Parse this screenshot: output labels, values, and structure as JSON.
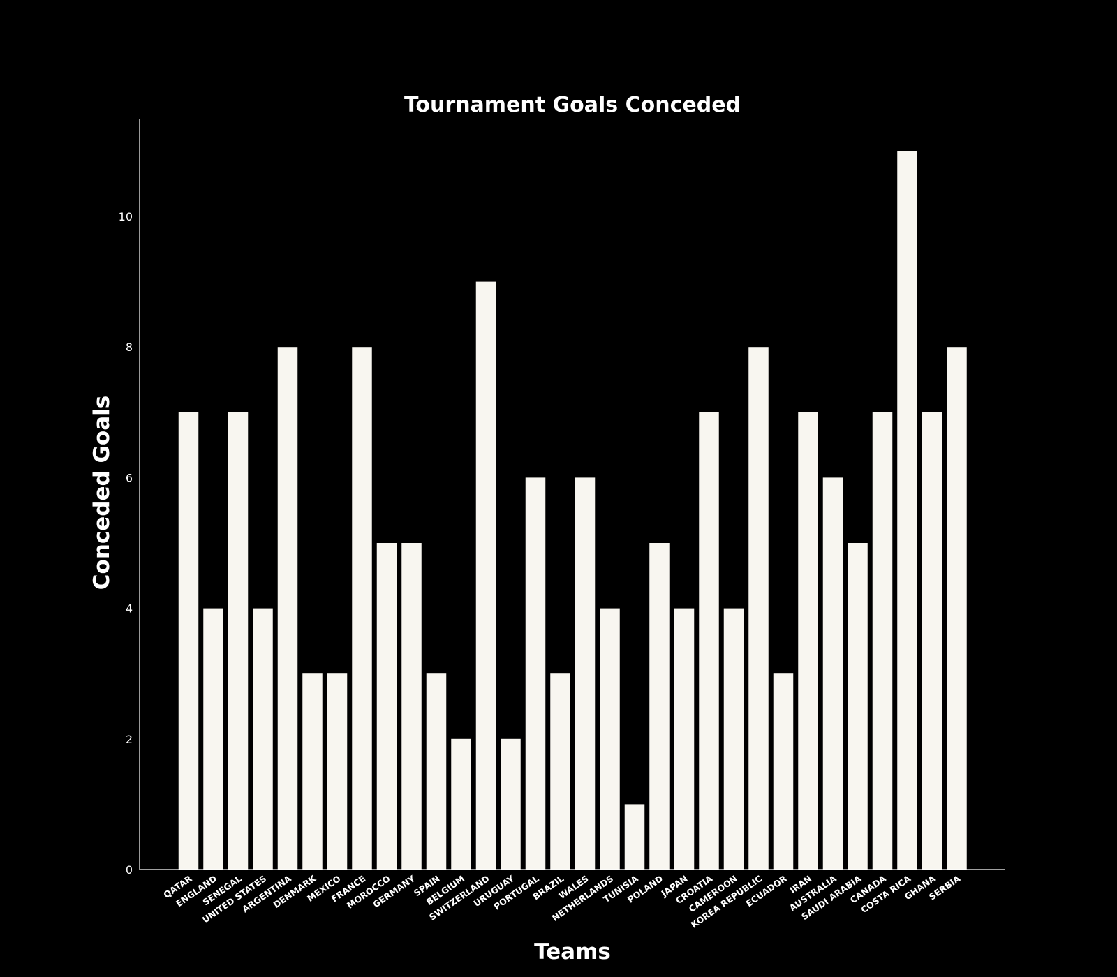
{
  "colors": {
    "background": "#000000",
    "bar": "#f8f6f0",
    "axis": "#ffffff",
    "text": "#ffffff"
  },
  "chart_data": {
    "type": "bar",
    "title": "Tournament Goals Conceded",
    "xlabel": "Teams",
    "ylabel": "Conceded Goals",
    "ylim": [
      0,
      11.5
    ],
    "yticks": [
      0,
      2,
      4,
      6,
      8,
      10
    ],
    "grid": false,
    "categories": [
      "QATAR",
      "ENGLAND",
      "SENEGAL",
      "UNITED STATES",
      "ARGENTINA",
      "DENMARK",
      "MEXICO",
      "FRANCE",
      "MOROCCO",
      "GERMANY",
      "SPAIN",
      "BELGIUM",
      "SWITZERLAND",
      "URUGUAY",
      "PORTUGAL",
      "BRAZIL",
      "WALES",
      "NETHERLANDS",
      "TUNISIA",
      "POLAND",
      "JAPAN",
      "CROATIA",
      "CAMEROON",
      "KOREA REPUBLIC",
      "ECUADOR",
      "IRAN",
      "AUSTRALIA",
      "SAUDI ARABIA",
      "CANADA",
      "COSTA RICA",
      "GHANA",
      "SERBIA"
    ],
    "values": [
      7,
      4,
      7,
      4,
      8,
      3,
      3,
      8,
      5,
      5,
      3,
      2,
      9,
      2,
      6,
      3,
      6,
      4,
      1,
      5,
      4,
      7,
      4,
      8,
      3,
      7,
      6,
      5,
      7,
      11,
      7,
      8
    ]
  }
}
